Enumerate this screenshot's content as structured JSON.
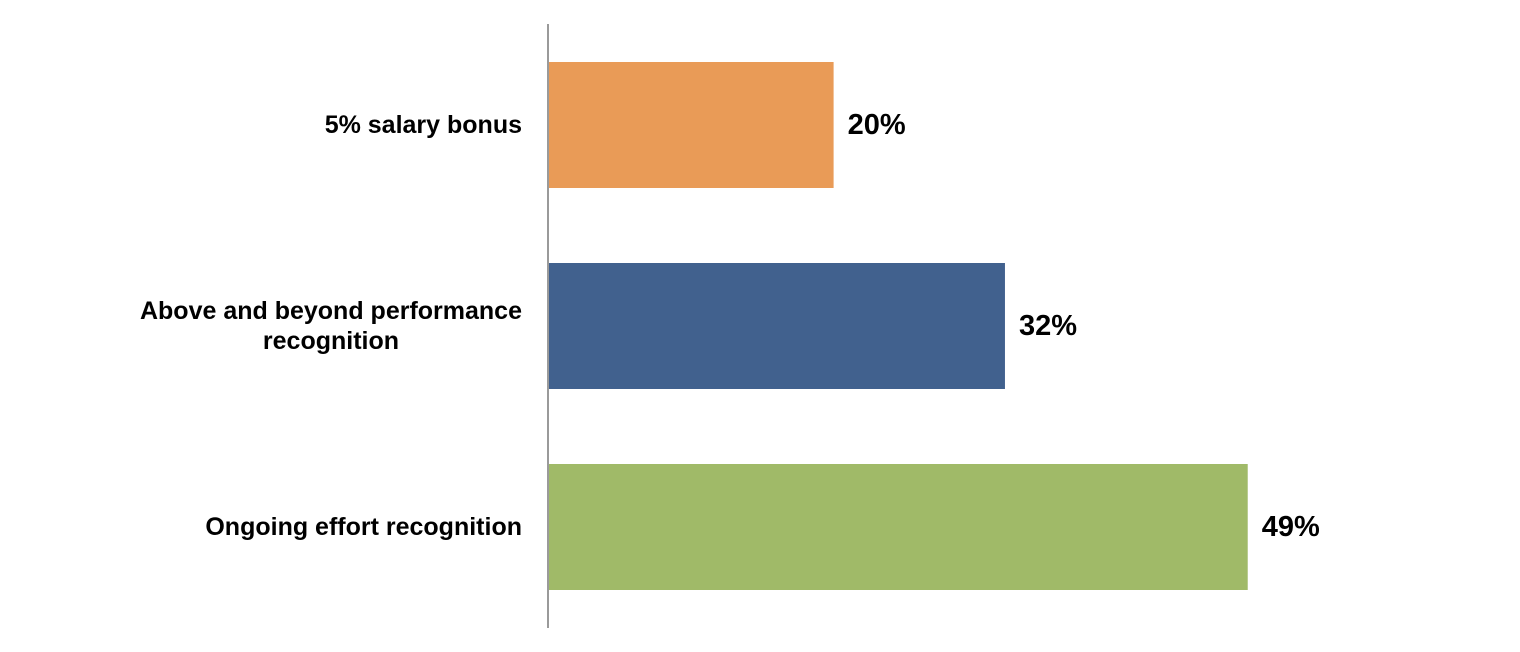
{
  "chart_data": {
    "type": "bar",
    "orientation": "horizontal",
    "title": "",
    "xlabel": "",
    "ylabel": "",
    "grid": false,
    "legend": "none",
    "xlim": [
      0,
      0.5
    ],
    "categories": [
      [
        "5% salary bonus"
      ],
      [
        "Above and beyond performance",
        "recognition"
      ],
      [
        "Ongoing effort recognition"
      ]
    ],
    "values": [
      0.2,
      0.32,
      0.49
    ],
    "value_labels": [
      "20%",
      "32%",
      "49%"
    ],
    "colors": [
      "#E99B57",
      "#41618E",
      "#A0BA68"
    ],
    "axis_color": "#9a9a9a"
  }
}
